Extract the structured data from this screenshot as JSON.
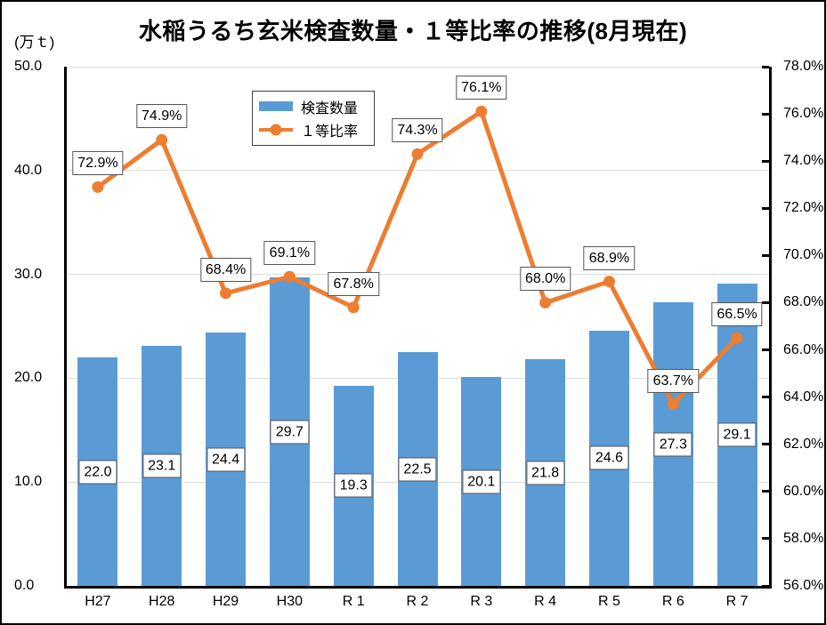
{
  "title": "水稲うるち玄米検査数量・１等比率の推移(8月現在)",
  "left_axis_unit": "(万ｔ)",
  "legend": {
    "bar_label": "検査数量",
    "line_label": "１等比率"
  },
  "colors": {
    "bar": "#5B9BD5",
    "line": "#ED7D31",
    "grid": "#DCDCDC",
    "axis": "#000000",
    "label_box_border": "#555555"
  },
  "chart_data": {
    "type": "bar",
    "subtype": "combo-bar-line-dual-axis",
    "title": "水稲うるち玄米検査数量・１等比率の推移(8月現在)",
    "categories": [
      "H27",
      "H28",
      "H29",
      "H30",
      "R 1",
      "R 2",
      "R 3",
      "R 4",
      "R 5",
      "R 6",
      "R 7"
    ],
    "series": [
      {
        "name": "検査数量",
        "type": "bar",
        "axis": "left",
        "unit": "万t",
        "values": [
          22.0,
          23.1,
          24.4,
          29.7,
          19.3,
          22.5,
          20.1,
          21.8,
          24.6,
          27.3,
          29.1
        ],
        "data_labels": [
          "22.0",
          "23.1",
          "24.4",
          "29.7",
          "19.3",
          "22.5",
          "20.1",
          "21.8",
          "24.6",
          "27.3",
          "29.1"
        ]
      },
      {
        "name": "１等比率",
        "type": "line",
        "axis": "right",
        "unit": "%",
        "values": [
          72.9,
          74.9,
          68.4,
          69.1,
          67.8,
          74.3,
          76.1,
          68.0,
          68.9,
          63.7,
          66.5
        ],
        "data_labels": [
          "72.9%",
          "74.9%",
          "68.4%",
          "69.1%",
          "67.8%",
          "74.3%",
          "76.1%",
          "68.0%",
          "68.9%",
          "63.7%",
          "66.5%"
        ]
      }
    ],
    "left_axis": {
      "label": "(万ｔ)",
      "min": 0,
      "max": 50,
      "step": 10,
      "tick_labels_top_to_bottom": [
        "50.0",
        "40.0",
        "30.0",
        "20.0",
        "10.0",
        "0.0"
      ]
    },
    "right_axis": {
      "min": 56,
      "max": 78,
      "step": 2,
      "tick_labels_top_to_bottom": [
        "78.0%",
        "76.0%",
        "74.0%",
        "72.0%",
        "70.0%",
        "68.0%",
        "66.0%",
        "64.0%",
        "62.0%",
        "60.0%",
        "58.0%",
        "56.0%"
      ]
    },
    "grid": "horizontal-major-left-axis",
    "legend_position": "top-left-inside"
  }
}
